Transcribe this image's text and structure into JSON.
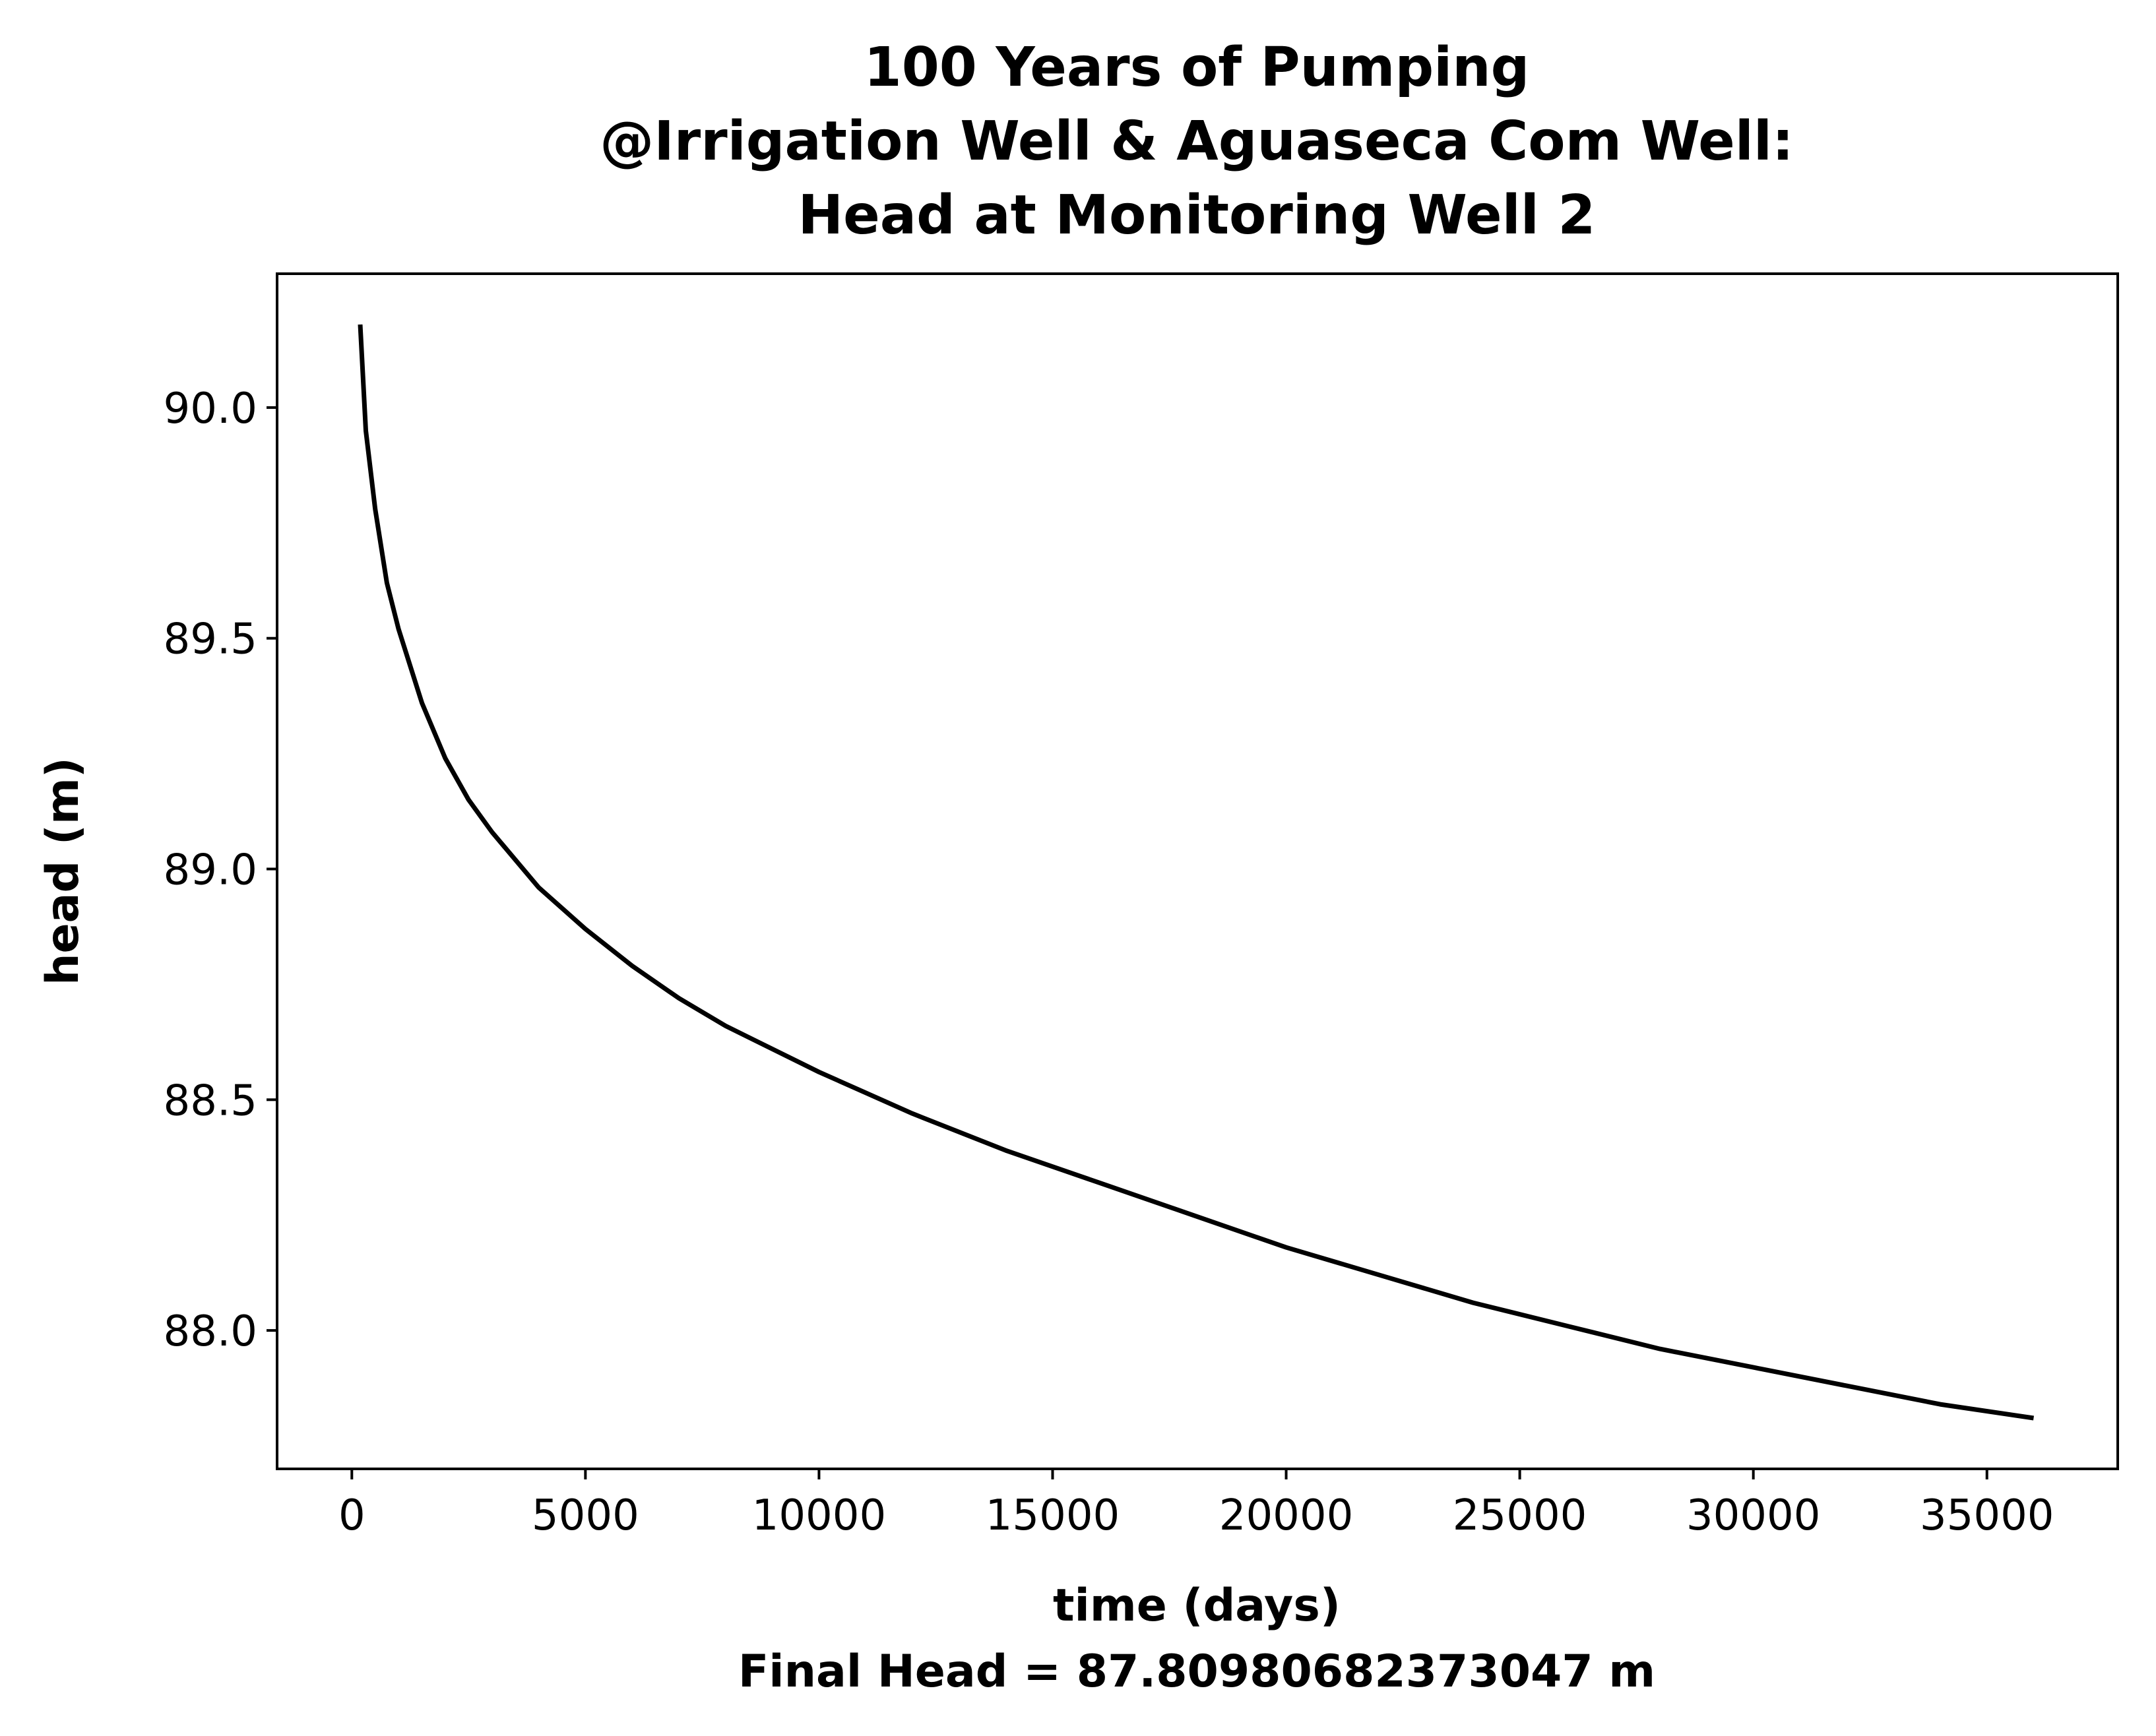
{
  "chart_data": {
    "type": "line",
    "title_lines": [
      "100 Years of Pumping",
      "@Irrigation Well & Aguaseca Com Well:",
      "Head at Monitoring Well 2"
    ],
    "xlabel": "time (days)",
    "xlabel_note": "Final Head = 87.80980682373047 m",
    "ylabel": "head (m)",
    "xlim": [
      -1600,
      37800
    ],
    "ylim": [
      87.7,
      90.29
    ],
    "x_ticks": [
      0,
      5000,
      10000,
      15000,
      20000,
      25000,
      30000,
      35000
    ],
    "y_ticks": [
      "88.0",
      "88.5",
      "89.0",
      "89.5",
      "90.0"
    ],
    "grid": false,
    "line_color": "#000000",
    "series": [
      {
        "x": [
          180,
          300,
          500,
          750,
          1000,
          1500,
          2000,
          2500,
          3000,
          4000,
          5000,
          6000,
          7000,
          8000,
          10000,
          12000,
          14000,
          16000,
          18000,
          20000,
          22000,
          24000,
          26000,
          28000,
          30000,
          32000,
          34000,
          36000
        ],
        "y": [
          90.18,
          89.95,
          89.78,
          89.62,
          89.52,
          89.36,
          89.24,
          89.15,
          89.08,
          88.96,
          88.87,
          88.79,
          88.72,
          88.66,
          88.56,
          88.47,
          88.39,
          88.32,
          88.25,
          88.18,
          88.12,
          88.06,
          88.01,
          87.96,
          87.92,
          87.88,
          87.84,
          87.81
        ]
      }
    ]
  }
}
